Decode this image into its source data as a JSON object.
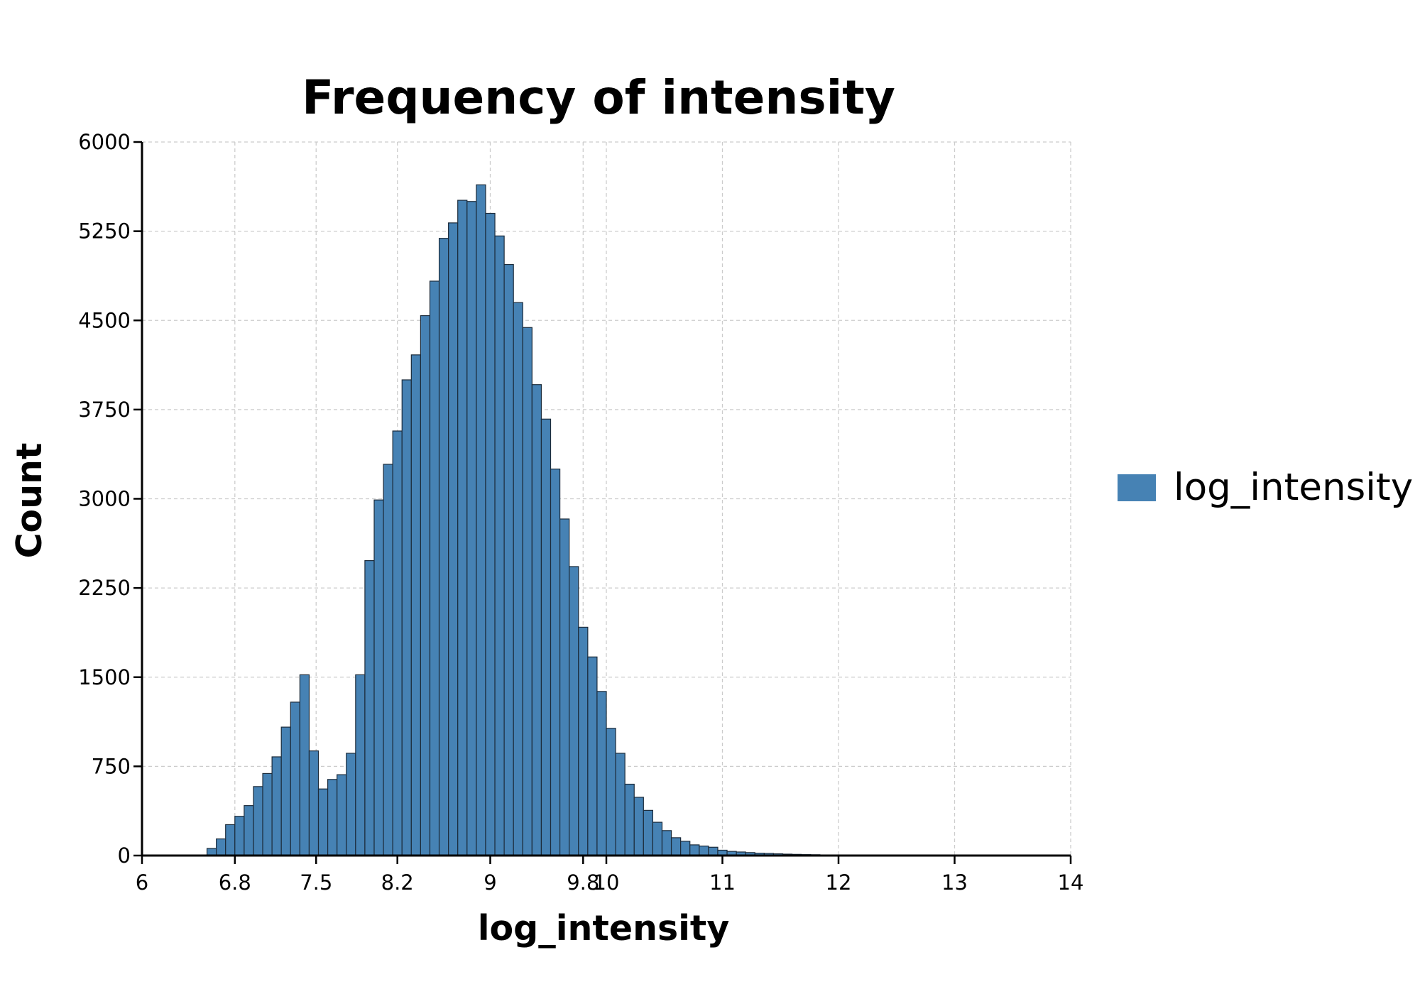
{
  "chart_data": {
    "type": "bar",
    "title": "Frequency of intensity",
    "xlabel": "log_intensity",
    "ylabel": "Count",
    "xlim": [
      6,
      14
    ],
    "ylim": [
      0,
      6000
    ],
    "x_ticks": [
      6,
      6.8,
      7.5,
      8.2,
      9,
      9.8,
      10,
      11,
      12,
      13,
      14
    ],
    "x_tick_labels": [
      "6",
      "6.8",
      "7.5",
      "8.2",
      "9",
      "9.8",
      "10",
      "11",
      "12",
      "13",
      "14"
    ],
    "y_ticks": [
      0,
      750,
      1500,
      2250,
      3000,
      3750,
      4500,
      5250,
      6000
    ],
    "y_tick_labels": [
      "0",
      "750",
      "1500",
      "2250",
      "3000",
      "3750",
      "4500",
      "5250",
      "6000"
    ],
    "grid": true,
    "legend": "right",
    "bar_color": "#4682b4",
    "bin_width": 0.08,
    "series": [
      {
        "name": "log_intensity",
        "bin_starts": [
          6.56,
          6.64,
          6.72,
          6.8,
          6.88,
          6.96,
          7.04,
          7.12,
          7.2,
          7.28,
          7.36,
          7.44,
          7.52,
          7.6,
          7.68,
          7.76,
          7.84,
          7.92,
          8.0,
          8.08,
          8.16,
          8.24,
          8.32,
          8.4,
          8.48,
          8.56,
          8.64,
          8.72,
          8.8,
          8.88,
          8.96,
          9.04,
          9.12,
          9.2,
          9.28,
          9.36,
          9.44,
          9.52,
          9.6,
          9.68,
          9.76,
          9.84,
          9.92,
          10.0,
          10.08,
          10.16,
          10.24,
          10.32,
          10.4,
          10.48,
          10.56,
          10.64,
          10.72,
          10.8,
          10.88,
          10.96,
          11.04,
          11.12,
          11.2,
          11.28,
          11.36,
          11.44,
          11.52,
          11.6,
          11.68,
          11.76,
          11.84,
          11.92,
          12.0,
          12.08,
          12.16,
          12.24,
          12.32,
          12.4
        ],
        "counts": [
          60,
          140,
          260,
          330,
          420,
          580,
          690,
          830,
          1080,
          1290,
          1520,
          880,
          560,
          640,
          680,
          860,
          1520,
          2480,
          2990,
          3290,
          3570,
          4000,
          4210,
          4540,
          4830,
          5190,
          5320,
          5510,
          5500,
          5640,
          5400,
          5210,
          4970,
          4650,
          4440,
          3960,
          3670,
          3250,
          2830,
          2430,
          1920,
          1670,
          1380,
          1070,
          860,
          600,
          490,
          380,
          280,
          210,
          150,
          120,
          90,
          80,
          70,
          45,
          35,
          30,
          25,
          20,
          18,
          15,
          12,
          10,
          8,
          7,
          5,
          4,
          3,
          3,
          2,
          2,
          1,
          1
        ]
      }
    ]
  }
}
